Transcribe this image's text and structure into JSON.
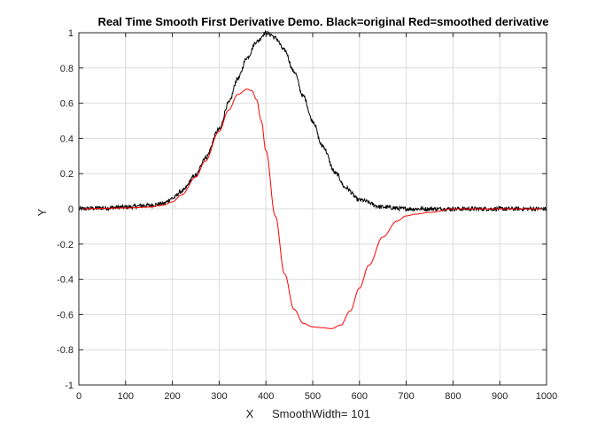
{
  "chart_data": {
    "type": "line",
    "title": "Real Time Smooth First Derivative Demo.  Black=original   Red=smoothed derivative",
    "xlabel": "X",
    "xlabel_extra": "SmoothWidth= 101",
    "ylabel": "Y",
    "xlim": [
      0,
      1000
    ],
    "ylim": [
      -1,
      1
    ],
    "xticks": [
      0,
      100,
      200,
      300,
      400,
      500,
      600,
      700,
      800,
      900,
      1000
    ],
    "yticks": [
      -1,
      -0.8,
      -0.6,
      -0.4,
      -0.2,
      0,
      0.2,
      0.4,
      0.6,
      0.8,
      1
    ],
    "ytick_labels": [
      "-1",
      "-0.8",
      "-0.6",
      "-0.4",
      "-0.2",
      "0",
      "0.2",
      "0.4",
      "0.6",
      "0.8",
      "1"
    ],
    "grid": true,
    "series": [
      {
        "name": "original",
        "color": "#000000",
        "x": [
          0,
          50,
          100,
          150,
          180,
          200,
          220,
          250,
          270,
          300,
          320,
          340,
          360,
          380,
          400,
          410,
          420,
          440,
          460,
          480,
          500,
          520,
          550,
          570,
          600,
          650,
          700,
          750,
          800,
          900,
          1000
        ],
        "y": [
          0,
          0.005,
          0.01,
          0.02,
          0.03,
          0.06,
          0.1,
          0.19,
          0.29,
          0.45,
          0.6,
          0.74,
          0.86,
          0.95,
          1.0,
          0.99,
          0.97,
          0.9,
          0.78,
          0.64,
          0.5,
          0.36,
          0.2,
          0.12,
          0.05,
          0.01,
          0.0,
          0.0,
          0.0,
          0.0,
          0.0
        ],
        "noise": 0.012
      },
      {
        "name": "smoothed derivative",
        "color": "#ff0000",
        "x": [
          0,
          100,
          150,
          180,
          200,
          220,
          250,
          270,
          300,
          320,
          340,
          360,
          370,
          380,
          390,
          400,
          420,
          440,
          460,
          480,
          500,
          520,
          540,
          560,
          580,
          600,
          620,
          650,
          680,
          700,
          720,
          750,
          800,
          900,
          1000
        ],
        "y": [
          0,
          0.005,
          0.01,
          0.02,
          0.04,
          0.08,
          0.18,
          0.27,
          0.44,
          0.56,
          0.65,
          0.68,
          0.67,
          0.62,
          0.5,
          0.33,
          -0.04,
          -0.37,
          -0.57,
          -0.65,
          -0.67,
          -0.675,
          -0.68,
          -0.66,
          -0.58,
          -0.45,
          -0.32,
          -0.16,
          -0.07,
          -0.04,
          -0.03,
          -0.02,
          0.0,
          0.0,
          0.0
        ],
        "noise": 0.0
      }
    ]
  }
}
